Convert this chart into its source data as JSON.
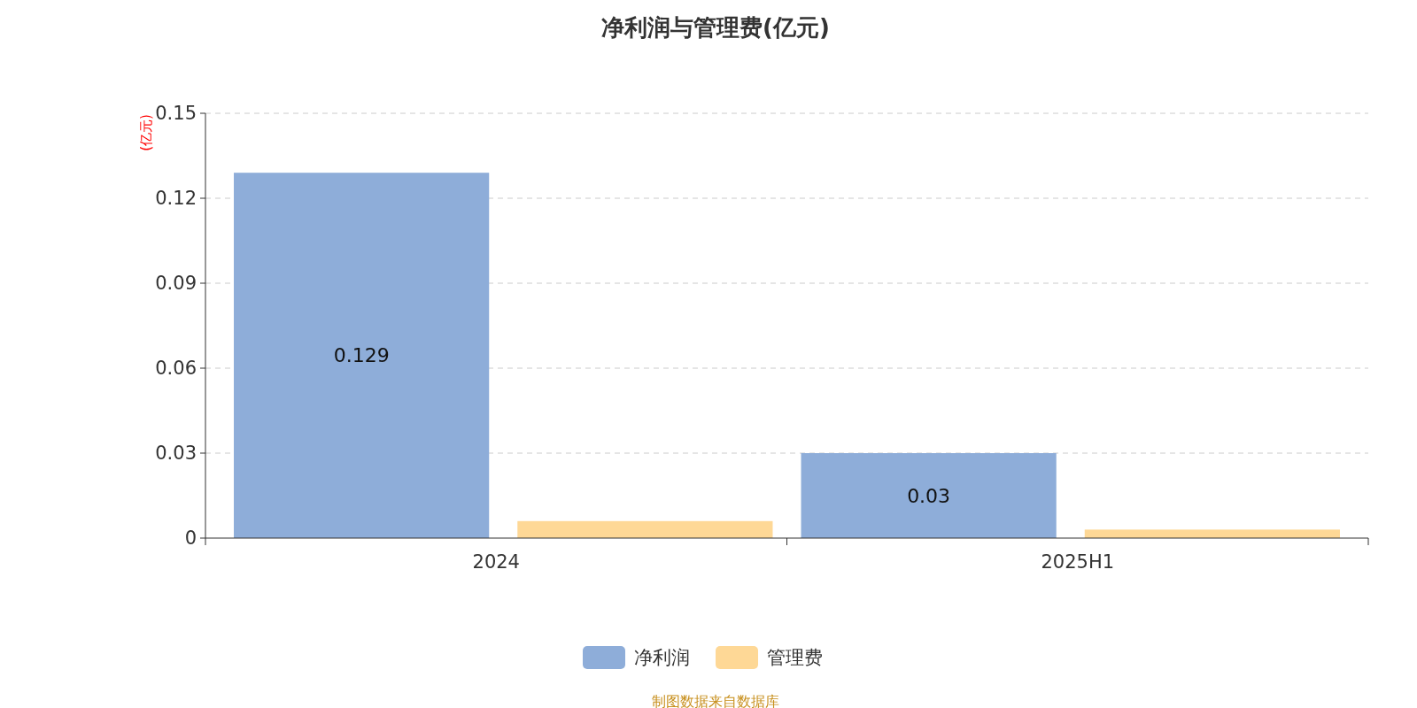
{
  "chart_data": {
    "type": "bar",
    "title": "净利润与管理费(亿元)",
    "ylabel": "(亿元)",
    "categories": [
      "2024",
      "2025H1"
    ],
    "series": [
      {
        "name": "净利润",
        "color": "#8eadd9",
        "values": [
          0.129,
          0.03
        ],
        "value_labels": [
          "0.129",
          "0.03"
        ]
      },
      {
        "name": "管理费",
        "color": "#fed896",
        "values": [
          0.006,
          0.003
        ]
      }
    ],
    "ylim": [
      0,
      0.15
    ],
    "yticks": [
      0,
      0.03,
      0.06,
      0.09,
      0.12,
      0.15
    ],
    "grid": "y",
    "legend": "bottom",
    "annotations": [
      "制图数据来自数据库"
    ]
  }
}
